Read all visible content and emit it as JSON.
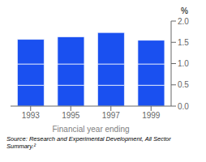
{
  "chart_data": {
    "type": "bar",
    "stacked": true,
    "categories": [
      "1993",
      "1995",
      "1997",
      "1999"
    ],
    "series": [
      {
        "color": "#1a50f0",
        "values": [
          0.49,
          0.49,
          0.49,
          0.49
        ]
      },
      {
        "color": "#1a50f0",
        "values": [
          0.5,
          0.5,
          0.5,
          0.5
        ]
      },
      {
        "color": "#1a50f0",
        "values": [
          0.58,
          0.64,
          0.74,
          0.56
        ]
      }
    ],
    "ylim": [
      0,
      2.0
    ],
    "yticks": [
      {
        "value": 0,
        "label": "0.0"
      },
      0.5,
      {
        "value": 1,
        "label": "1.0"
      },
      1.5,
      {
        "value": 2,
        "label": "2.0"
      }
    ],
    "xlabel": "Financial year ending",
    "ylabel": "%",
    "annotations": [
      "Source: Research and Experimental Development, All Sector\nSummary.²"
    ],
    "grid": false
  }
}
